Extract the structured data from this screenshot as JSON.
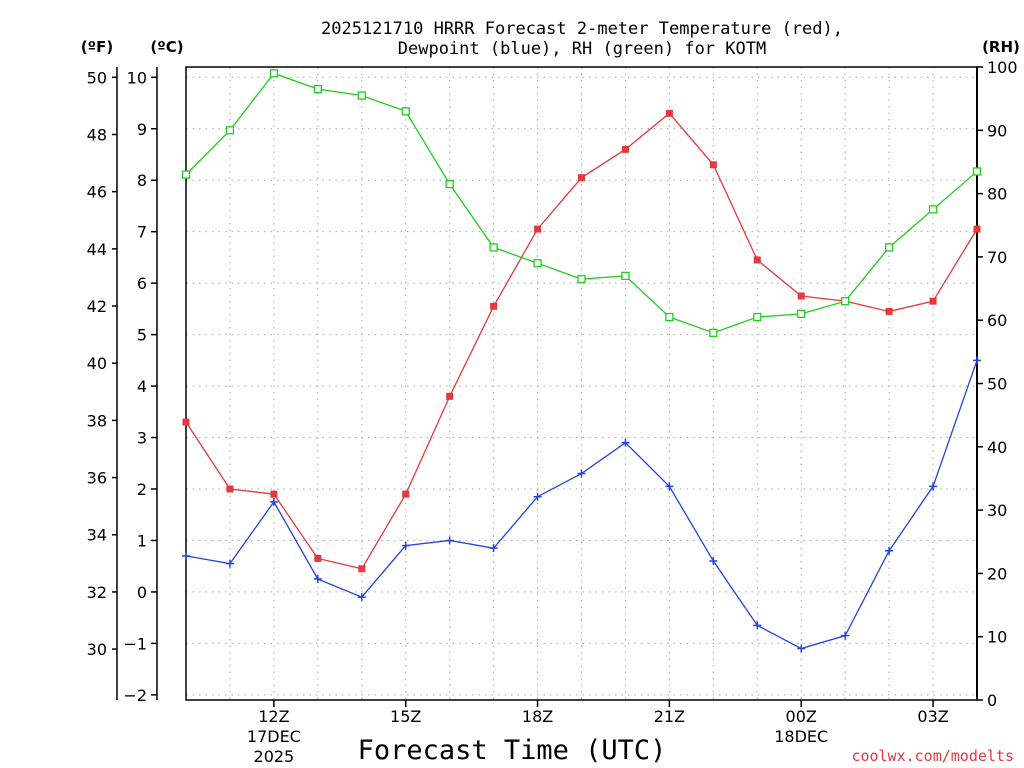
{
  "title": {
    "line1": "2025121710 HRRR Forecast 2-meter Temperature (red),",
    "line2": "Dewpoint (blue), RH (green) for KOTM"
  },
  "axis_units": {
    "fahrenheit": "(ºF)",
    "celsius": "(ºC)",
    "rh": "(RH)"
  },
  "xlabel": "Forecast Time (UTC)",
  "credit": "coolwx.com/modelts",
  "colors": {
    "temperature": "#e8383c",
    "dewpoint": "#2244e0",
    "rh": "#22cc22",
    "grid": "#a8a8a8",
    "credit": "#e8383c"
  },
  "chart_data": {
    "type": "line",
    "x": [
      9,
      10,
      11,
      12,
      13,
      14,
      15,
      16,
      17,
      18,
      19,
      20,
      21,
      22,
      23,
      24,
      25,
      26,
      27
    ],
    "xlim": [
      9,
      27
    ],
    "x_ticks": [
      {
        "x": 11,
        "label": "12Z",
        "sub1": "17DEC",
        "sub2": "2025"
      },
      {
        "x": 14,
        "label": "15Z",
        "sub1": "",
        "sub2": ""
      },
      {
        "x": 17,
        "label": "18Z",
        "sub1": "",
        "sub2": ""
      },
      {
        "x": 20,
        "label": "21Z",
        "sub1": "",
        "sub2": ""
      },
      {
        "x": 23,
        "label": "00Z",
        "sub1": "18DEC",
        "sub2": ""
      },
      {
        "x": 26,
        "label": "03Z",
        "sub1": "",
        "sub2": ""
      }
    ],
    "ylim_c": [
      -2.1,
      10.2
    ],
    "celsius_ticks": [
      -2,
      -1,
      0,
      1,
      2,
      3,
      4,
      5,
      6,
      7,
      8,
      9,
      10
    ],
    "fahrenheit_ticks": [
      30,
      32,
      34,
      36,
      38,
      40,
      42,
      44,
      46,
      48,
      50
    ],
    "rh_ticks": [
      0,
      10,
      20,
      30,
      40,
      50,
      60,
      70,
      80,
      90,
      100
    ],
    "series": [
      {
        "name": "Temperature (red)",
        "marker": "filled-square",
        "unit": "C",
        "values": [
          3.3,
          2.0,
          1.9,
          0.65,
          0.45,
          1.9,
          3.8,
          5.55,
          7.05,
          8.05,
          8.6,
          9.3,
          8.3,
          6.45,
          5.75,
          5.65,
          5.45,
          5.65,
          7.05
        ]
      },
      {
        "name": "Dewpoint (blue)",
        "marker": "plus",
        "unit": "C",
        "values": [
          0.7,
          0.55,
          1.75,
          0.25,
          -0.1,
          0.9,
          1.0,
          0.85,
          1.85,
          2.3,
          2.9,
          2.05,
          0.6,
          -0.65,
          -1.1,
          -0.85,
          0.8,
          2.05,
          4.5
        ]
      },
      {
        "name": "RH (green)",
        "marker": "open-square",
        "unit": "%",
        "values": [
          83,
          90,
          99,
          96.5,
          95.5,
          93,
          81.5,
          71.5,
          69,
          66.5,
          67,
          60.5,
          58,
          60.5,
          61,
          63,
          71.5,
          77.5,
          83.5
        ]
      }
    ]
  }
}
